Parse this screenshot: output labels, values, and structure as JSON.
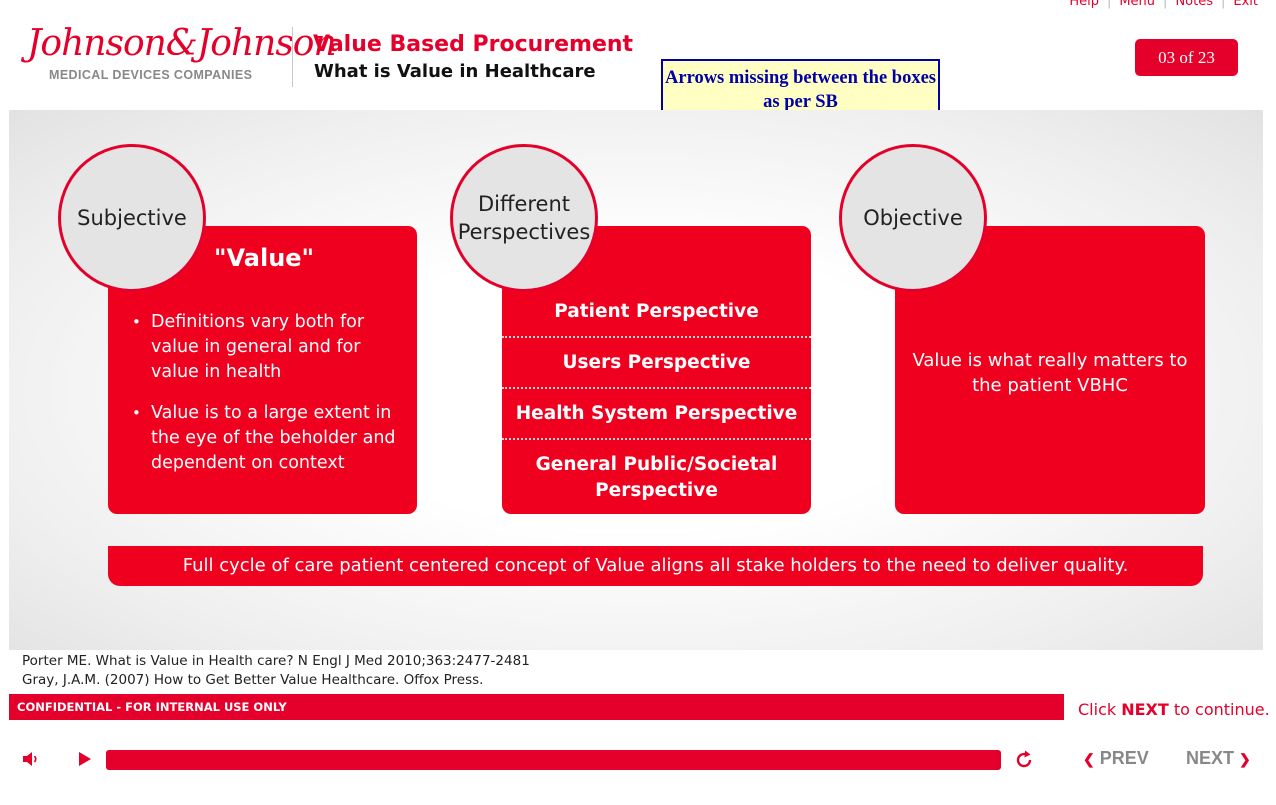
{
  "toplinks": [
    "Help",
    "Menu",
    "Notes",
    "Exit"
  ],
  "brand": {
    "script": "Johnson&Johnson",
    "sub": "MEDICAL DEVICES COMPANIES"
  },
  "header": {
    "title": "Value Based Procurement",
    "subtitle": "What is Value in Healthcare"
  },
  "review_note": "Arrows missing between the boxes as per SB",
  "counter": "03 of 23",
  "panels": {
    "subjective": {
      "circle": "Subjective",
      "heading": "\"Value\"",
      "bullets": [
        "Definitions vary both for value in general and for value in health",
        "Value is to a large extent in the eye of the beholder and dependent on context"
      ]
    },
    "perspectives": {
      "circle_line1": "Different",
      "circle_line2": "Perspectives",
      "items": [
        "Patient Perspective",
        "Users Perspective",
        "Health System Perspective",
        "General Public/Societal Perspective"
      ]
    },
    "objective": {
      "circle": "Objective",
      "text": "Value is what really matters to the patient VBHC"
    }
  },
  "banner": "Full cycle of care patient centered concept of Value aligns all stake holders to the need to deliver quality.",
  "references": [
    "Porter ME. What is Value in Health care? N Engl J Med 2010;363:2477-2481",
    "Gray, J.A.M. (2007) How to Get Better Value Healthcare. Offox Press."
  ],
  "confidential": "CONFIDENTIAL - FOR INTERNAL USE ONLY",
  "click_next": {
    "pre": "Click ",
    "next": "NEXT",
    "post": " to continue."
  },
  "player": {
    "progress_percent": 100,
    "prev_label": "PREV",
    "next_label": "NEXT"
  },
  "icons": {
    "volume": "speaker-icon",
    "play": "play-icon",
    "replay": "replay-icon"
  },
  "colors": {
    "brand_red": "#e4002b",
    "card_red": "#f0001f",
    "note_blue": "#0000a8",
    "note_bg": "#ffffc4"
  }
}
